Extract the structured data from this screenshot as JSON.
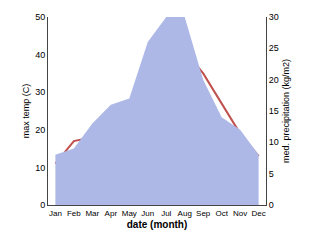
{
  "chart_data": {
    "type": "line",
    "categories": [
      "Jan",
      "Feb",
      "Mar",
      "Apr",
      "May",
      "Jun",
      "Jul",
      "Aug",
      "Sep",
      "Oct",
      "Nov",
      "Dec"
    ],
    "series": [
      {
        "type": "area",
        "color": "#adb8e6",
        "axis": "y2",
        "values": [
          8,
          9,
          13,
          16,
          17,
          26,
          30,
          30,
          20,
          14,
          12,
          8
        ]
      },
      {
        "type": "line",
        "color": "#c0504d",
        "values": [
          11,
          17,
          18,
          17,
          26,
          38,
          41,
          41,
          35,
          27,
          19,
          13
        ]
      }
    ],
    "xlabel": "date (month)",
    "ylabel": "max temp (C)",
    "y2label": "med. precipitation (kg/m2)",
    "ylim": [
      0,
      50
    ],
    "yticks": [
      0,
      10,
      20,
      30,
      40,
      50
    ],
    "y2lim": [
      0,
      30
    ],
    "y2ticks": [
      0,
      5,
      10,
      15,
      20,
      25,
      30
    ],
    "grid": false
  }
}
